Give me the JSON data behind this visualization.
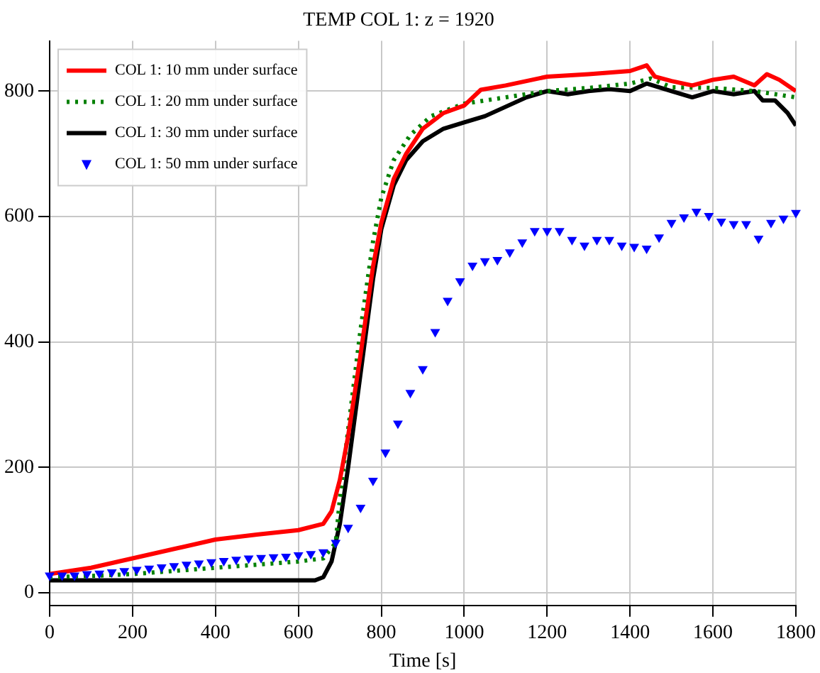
{
  "chart_data": {
    "type": "line",
    "title": "TEMP COL 1: z = 1920",
    "xlabel": "Time [s]",
    "xlim": [
      0,
      1800
    ],
    "xticks": [
      0,
      200,
      400,
      600,
      800,
      1000,
      1200,
      1400,
      1600,
      1800
    ],
    "ylim": [
      -20,
      880
    ],
    "yticks": [
      0,
      200,
      400,
      600,
      800
    ],
    "grid": true,
    "legend": "top left",
    "series": [
      {
        "name": "COL 1: 10 mm under surface",
        "color": "#ff0000",
        "line_style": "solid",
        "marker": "none",
        "x": [
          0,
          100,
          200,
          300,
          400,
          500,
          600,
          660,
          680,
          700,
          720,
          750,
          780,
          800,
          830,
          860,
          900,
          950,
          1000,
          1040,
          1100,
          1200,
          1300,
          1400,
          1440,
          1460,
          1500,
          1550,
          1600,
          1650,
          1700,
          1730,
          1760,
          1800
        ],
        "values": [
          30,
          40,
          55,
          70,
          85,
          93,
          100,
          110,
          130,
          180,
          250,
          380,
          520,
          590,
          660,
          700,
          740,
          765,
          777,
          802,
          809,
          823,
          827,
          832,
          841,
          823,
          816,
          809,
          818,
          823,
          809,
          827,
          818,
          800
        ]
      },
      {
        "name": "COL 1: 20 mm under surface",
        "color": "#008000",
        "line_style": "dotted",
        "marker": "none",
        "x": [
          0,
          100,
          200,
          300,
          400,
          500,
          600,
          660,
          690,
          700,
          720,
          750,
          780,
          800,
          830,
          870,
          920,
          1000,
          1100,
          1200,
          1300,
          1400,
          1450,
          1500,
          1600,
          1700,
          1800
        ],
        "values": [
          25,
          27,
          30,
          35,
          40,
          45,
          50,
          55,
          80,
          150,
          260,
          420,
          560,
          630,
          690,
          730,
          760,
          780,
          790,
          800,
          805,
          812,
          820,
          806,
          805,
          800,
          790
        ]
      },
      {
        "name": "COL 1: 30 mm under surface",
        "color": "#000000",
        "line_style": "solid",
        "marker": "none",
        "x": [
          0,
          200,
          400,
          600,
          640,
          660,
          680,
          700,
          720,
          750,
          780,
          800,
          830,
          860,
          900,
          950,
          1000,
          1050,
          1100,
          1150,
          1200,
          1250,
          1300,
          1350,
          1400,
          1440,
          1500,
          1550,
          1600,
          1650,
          1700,
          1720,
          1750,
          1780,
          1800
        ],
        "values": [
          20,
          20,
          20,
          20,
          20,
          25,
          50,
          110,
          200,
          350,
          500,
          580,
          650,
          690,
          720,
          740,
          750,
          760,
          775,
          790,
          800,
          795,
          800,
          803,
          800,
          812,
          800,
          790,
          800,
          795,
          800,
          785,
          785,
          765,
          745
        ]
      },
      {
        "name": "COL 1: 50 mm under surface",
        "color": "#0000ff",
        "type": "scatter",
        "marker": "triangle-down",
        "x": [
          0,
          30,
          60,
          90,
          120,
          150,
          180,
          210,
          240,
          270,
          300,
          330,
          360,
          390,
          420,
          450,
          480,
          510,
          540,
          570,
          600,
          630,
          660,
          690,
          720,
          750,
          780,
          810,
          840,
          870,
          900,
          930,
          960,
          990,
          1020,
          1050,
          1080,
          1110,
          1140,
          1170,
          1200,
          1230,
          1260,
          1290,
          1320,
          1350,
          1380,
          1410,
          1440,
          1470,
          1500,
          1530,
          1560,
          1590,
          1620,
          1650,
          1680,
          1710,
          1740,
          1770,
          1800
        ],
        "values": [
          28,
          28,
          28,
          30,
          31,
          33,
          35,
          37,
          39,
          41,
          43,
          45,
          47,
          49,
          51,
          53,
          55,
          56,
          57,
          58,
          60,
          62,
          65,
          80,
          104,
          136,
          179,
          224,
          270,
          319,
          357,
          416,
          466,
          497,
          522,
          529,
          531,
          543,
          559,
          577,
          577,
          577,
          563,
          554,
          563,
          563,
          554,
          552,
          549,
          567,
          590,
          599,
          608,
          601,
          592,
          588,
          588,
          565,
          590,
          597,
          606
        ]
      }
    ]
  }
}
